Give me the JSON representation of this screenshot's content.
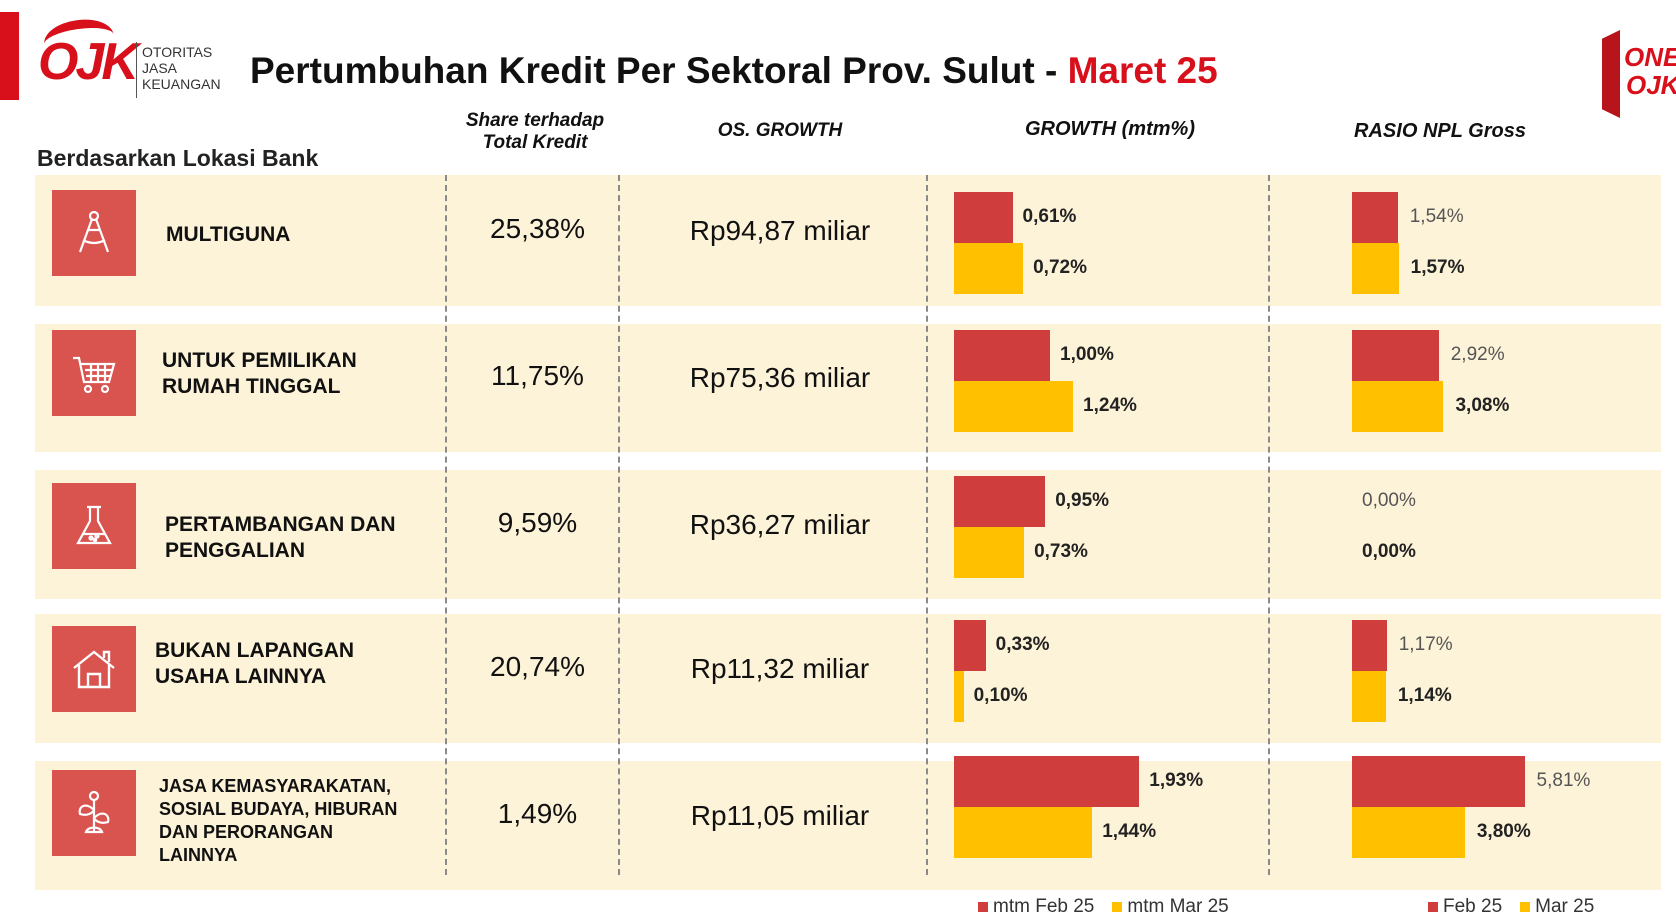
{
  "header": {
    "logo_mark": "OJK",
    "logo_lines": [
      "OTORITAS",
      "JASA",
      "KEUANGAN"
    ],
    "title": "Pertumbuhan Kredit Per Sektoral Prov. Sulut - ",
    "title_accent": "Maret 25",
    "badge_top": "ONE",
    "badge_bottom": "OJK"
  },
  "colors": {
    "feb": "#d03d3d",
    "mar": "#ffc000",
    "accent": "#d7101b",
    "row_bg": "#fdf3d8",
    "icon_bg": "#d9534f"
  },
  "chart_data": {
    "type": "table",
    "subtitle": "Berdasarkan Lokasi Bank",
    "columns": {
      "share": [
        "Share terhadap",
        "Total Kredit"
      ],
      "os": "OS. GROWTH",
      "growth": "GROWTH (mtm%)",
      "npl": "RASIO NPL Gross"
    },
    "rows": [
      {
        "sector": [
          "MULTIGUNA"
        ],
        "icon": "compass-icon",
        "share": "25,38%",
        "os_growth": "Rp94,87 miliar",
        "growth_feb": 0.61,
        "growth_feb_label": "0,61%",
        "growth_mar": 0.72,
        "growth_mar_label": "0,72%",
        "npl_feb": 1.54,
        "npl_feb_label": "1,54%",
        "npl_mar": 1.57,
        "npl_mar_label": "1,57%"
      },
      {
        "sector": [
          "UNTUK PEMILIKAN",
          "RUMAH TINGGAL"
        ],
        "icon": "cart-icon",
        "share": "11,75%",
        "os_growth": "Rp75,36 miliar",
        "growth_feb": 1.0,
        "growth_feb_label": "1,00%",
        "growth_mar": 1.24,
        "growth_mar_label": "1,24%",
        "npl_feb": 2.92,
        "npl_feb_label": "2,92%",
        "npl_mar": 3.08,
        "npl_mar_label": "3,08%"
      },
      {
        "sector": [
          "PERTAMBANGAN DAN",
          "PENGGALIAN"
        ],
        "icon": "flask-icon",
        "share": "9,59%",
        "os_growth": "Rp36,27 miliar",
        "growth_feb": 0.95,
        "growth_feb_label": "0,95%",
        "growth_mar": 0.73,
        "growth_mar_label": "0,73%",
        "npl_feb": 0.0,
        "npl_feb_label": "0,00%",
        "npl_mar": 0.0,
        "npl_mar_label": "0,00%"
      },
      {
        "sector": [
          "BUKAN LAPANGAN",
          "USAHA LAINNYA"
        ],
        "icon": "house-icon",
        "share": "20,74%",
        "os_growth": "Rp11,32 miliar",
        "growth_feb": 0.33,
        "growth_feb_label": "0,33%",
        "growth_mar": 0.1,
        "growth_mar_label": "0,10%",
        "npl_feb": 1.17,
        "npl_feb_label": "1,17%",
        "npl_mar": 1.14,
        "npl_mar_label": "1,14%"
      },
      {
        "sector": [
          "JASA KEMASYARAKATAN,",
          "SOSIAL BUDAYA, HIBURAN",
          "DAN PERORANGAN",
          "LAINNYA"
        ],
        "icon": "plant-icon",
        "share": "1,49%",
        "os_growth": "Rp11,05 miliar",
        "growth_feb": 1.93,
        "growth_feb_label": "1,93%",
        "growth_mar": 1.44,
        "growth_mar_label": "1,44%",
        "npl_feb": 5.81,
        "npl_feb_label": "5,81%",
        "npl_mar": 3.8,
        "npl_mar_label": "3,80%"
      }
    ],
    "legend_growth": [
      "mtm Feb 25",
      "mtm Mar 25"
    ],
    "legend_npl": [
      "Feb 25",
      "Mar 25"
    ]
  }
}
